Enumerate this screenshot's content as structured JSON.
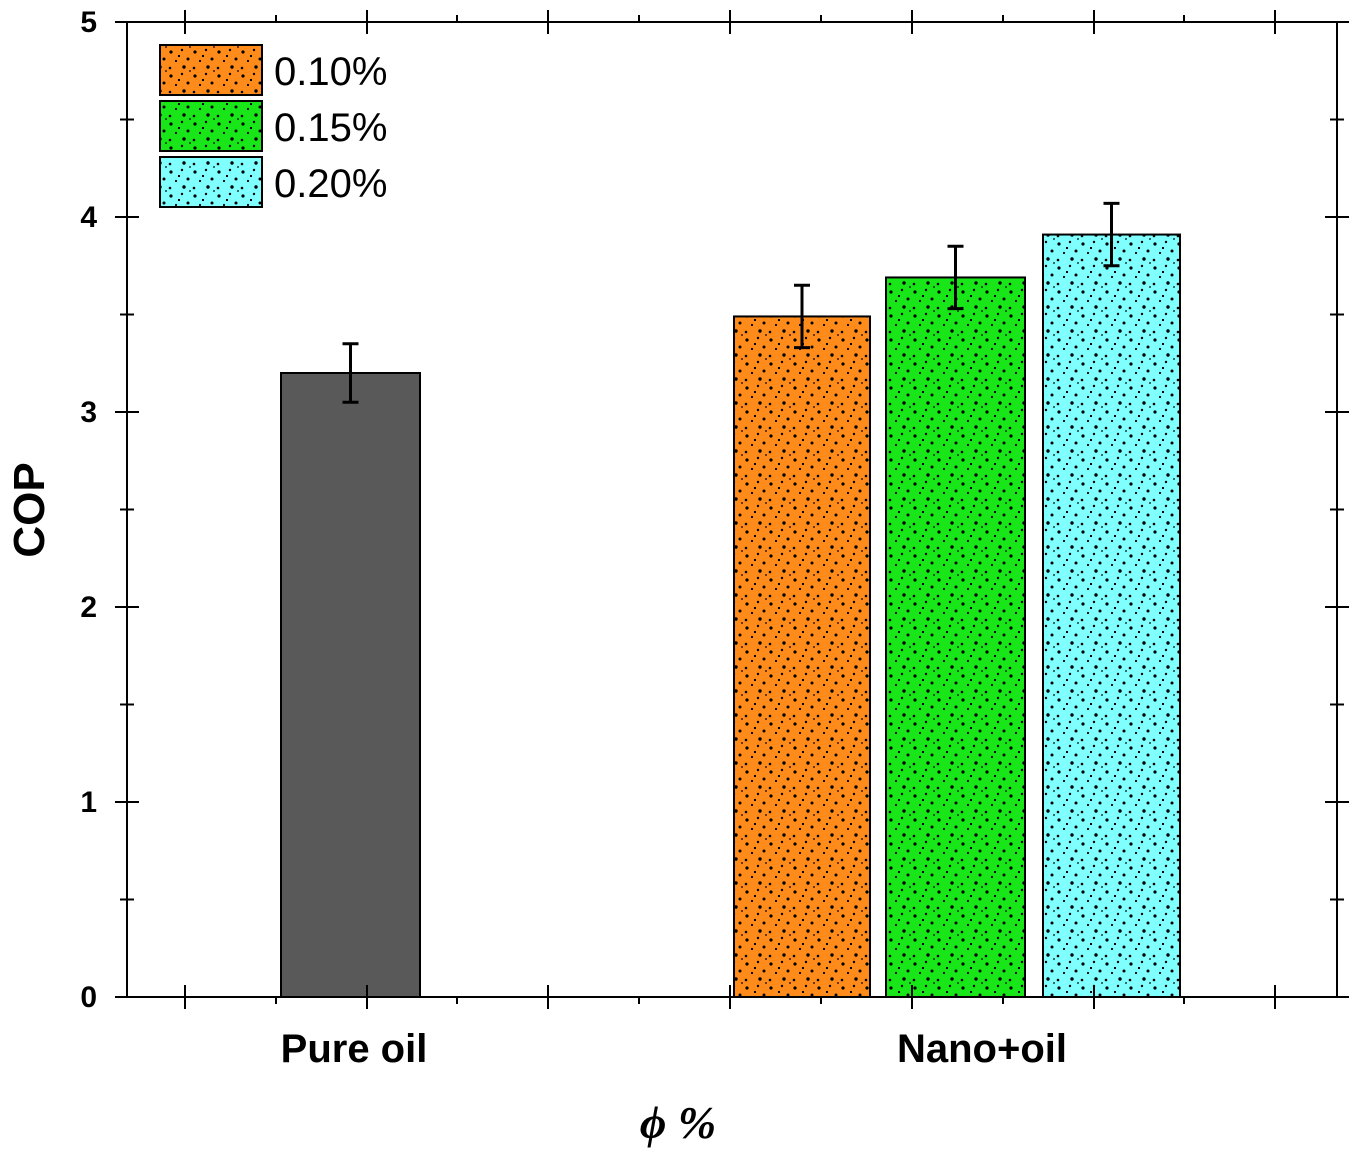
{
  "chart_data": {
    "type": "bar",
    "xlabel": "ϕ %",
    "ylabel": "COP",
    "ylim": [
      0,
      5
    ],
    "yticks": [
      0,
      1,
      2,
      3,
      4,
      5
    ],
    "categories": [
      "Pure oil",
      "Nano+oil"
    ],
    "grid": false,
    "legend_position": "top-left",
    "pure_oil": {
      "value": 3.2,
      "error": 0.15,
      "color": "#595959"
    },
    "series": [
      {
        "name": "0.10%",
        "category": "Nano+oil",
        "value": 3.49,
        "error": 0.16,
        "color": "#ff8c1a"
      },
      {
        "name": "0.15%",
        "category": "Nano+oil",
        "value": 3.69,
        "error": 0.16,
        "color": "#19e619"
      },
      {
        "name": "0.20%",
        "category": "Nano+oil",
        "value": 3.91,
        "error": 0.16,
        "color": "#80ffff"
      }
    ]
  }
}
